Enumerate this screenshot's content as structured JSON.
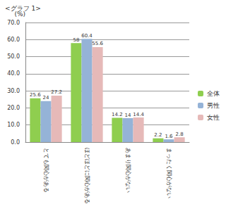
{
  "chart_data": {
    "type": "bar",
    "title": "<グラフ 1>",
    "ylabel": "(%)",
    "categories": [
      "とても関心がある",
      "ほどほどに関心がある",
      "あまり関心がない",
      "まったく関心がない"
    ],
    "series": [
      {
        "name": "全体",
        "color": "#8fce4f",
        "values": [
          25.6,
          58,
          14.2,
          2.2
        ]
      },
      {
        "name": "男性",
        "color": "#95b3d7",
        "values": [
          24,
          60.4,
          14,
          1.6
        ]
      },
      {
        "name": "女性",
        "color": "#e6b9b8",
        "values": [
          27.2,
          55.6,
          14.4,
          2.8
        ]
      }
    ],
    "ylim": [
      0,
      70
    ],
    "yticks": [
      {
        "value": 0,
        "label": "0.0"
      },
      {
        "value": 10,
        "label": "10.0"
      },
      {
        "value": 20,
        "label": "20.0"
      },
      {
        "value": 30,
        "label": "30.0"
      },
      {
        "value": 40,
        "label": "40.0"
      },
      {
        "value": 50,
        "label": "50.0"
      },
      {
        "value": 60,
        "label": "60.0"
      },
      {
        "value": 70,
        "label": "70.0"
      }
    ],
    "grid": true,
    "legend": "right",
    "data_labels": true
  }
}
